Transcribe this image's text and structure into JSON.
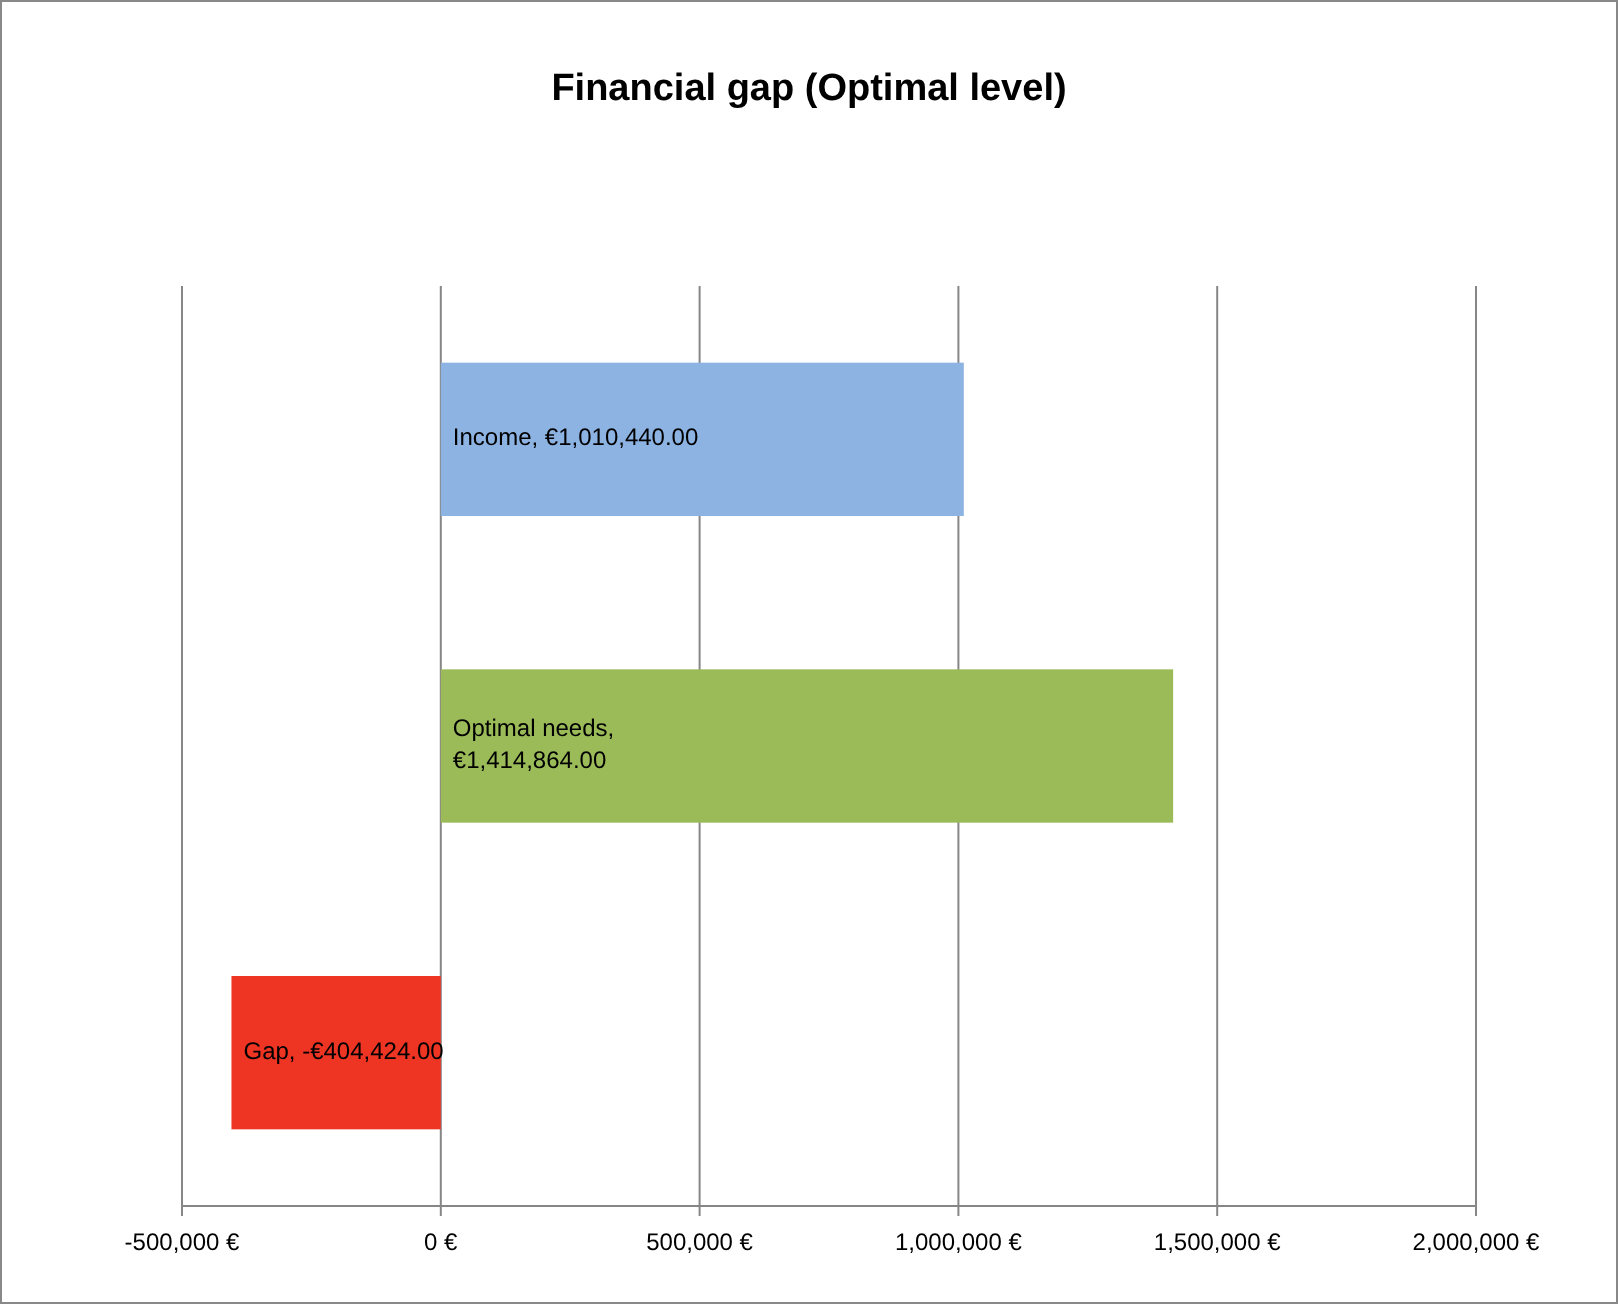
{
  "chart_data": {
    "type": "bar",
    "orientation": "horizontal",
    "title": "Financial gap (Optimal level)",
    "categories": [
      null,
      null,
      null
    ],
    "values": [
      1010440,
      1414864,
      -404424
    ],
    "colors": [
      "#8db3e2",
      "#9bbb59",
      "#ee3524"
    ],
    "value_labels": [
      "Income, €1,010,440.00",
      "Optimal needs, €1,414,864.00",
      "Gap, -€404,424.00"
    ],
    "xlim": [
      -500000,
      2000000
    ],
    "xticks": [
      {
        "value": -500000,
        "label": "-500,000 €"
      },
      {
        "value": 0,
        "label": "0 €"
      },
      {
        "value": 500000,
        "label": "500,000 €"
      },
      {
        "value": 1000000,
        "label": "1,000,000 €"
      },
      {
        "value": 1500000,
        "label": "1,500,000 €"
      },
      {
        "value": 2000000,
        "label": "2,000,000 €"
      }
    ],
    "grid": "x"
  }
}
